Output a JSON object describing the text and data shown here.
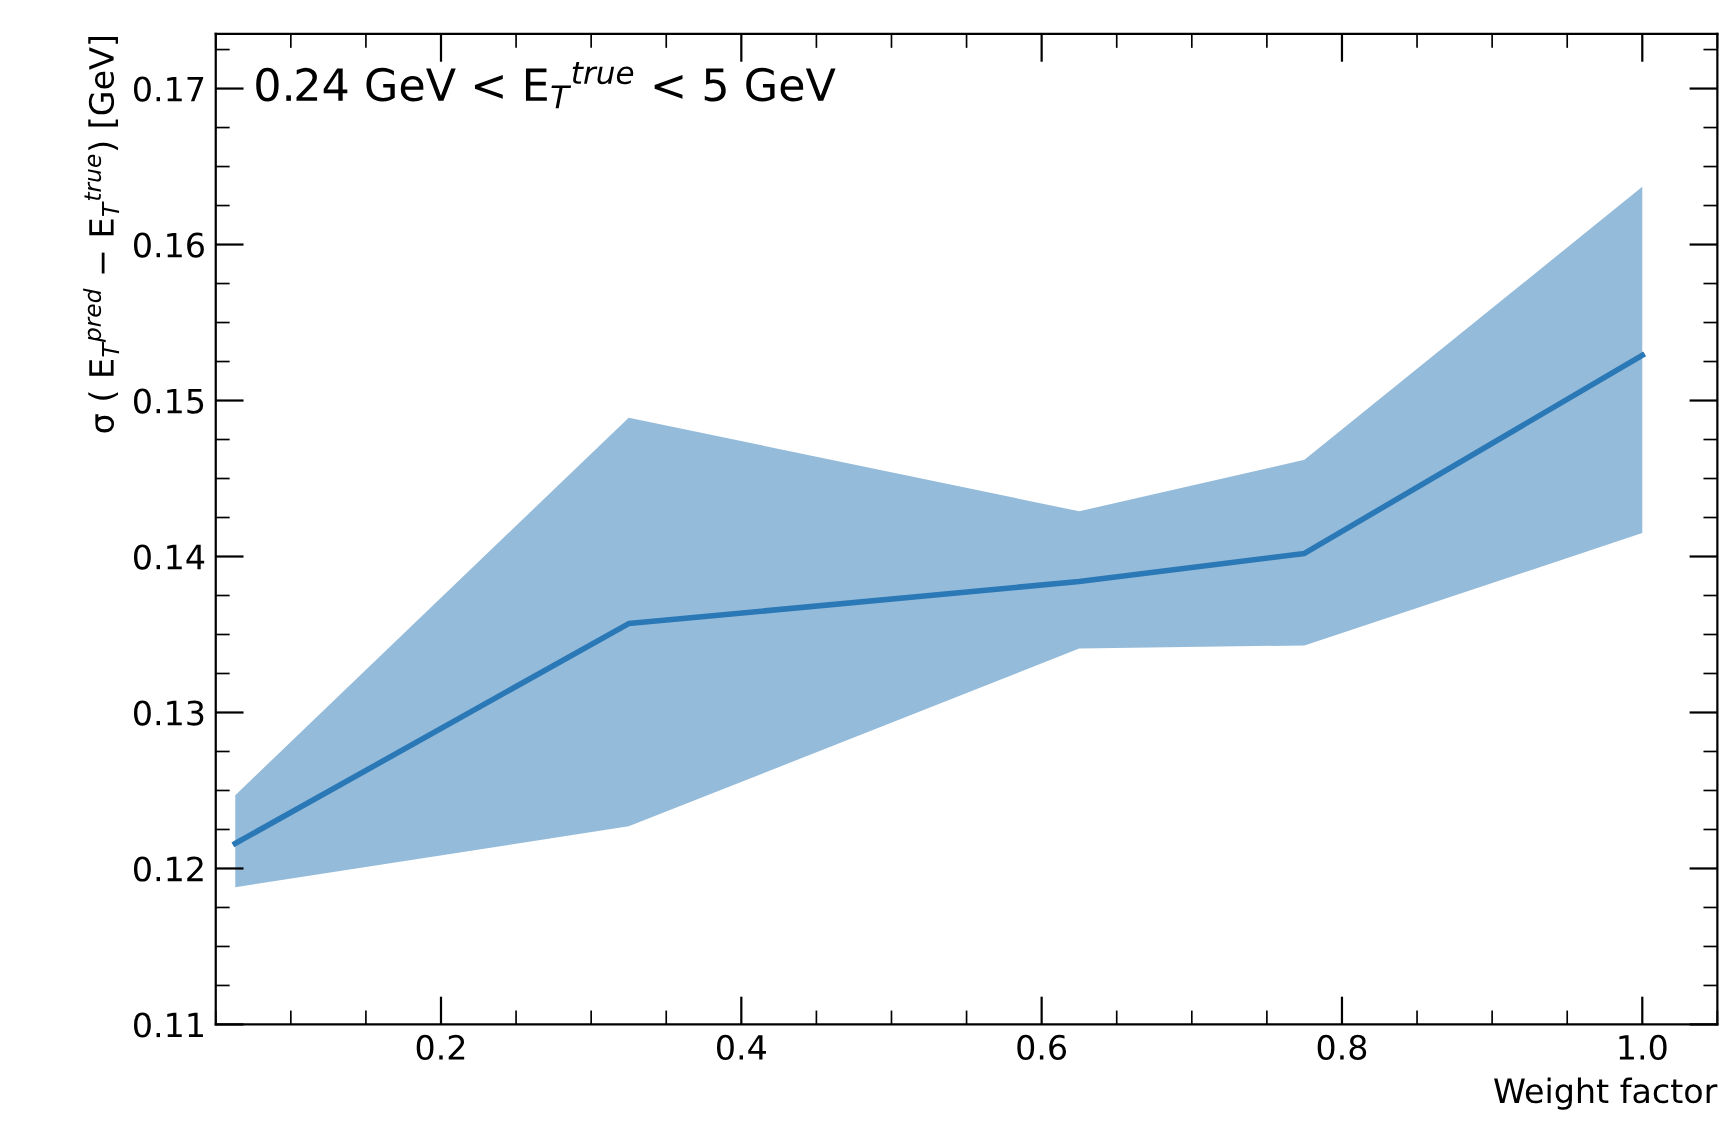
{
  "chart_data": {
    "type": "line",
    "xlabel": "Weight factor",
    "ylabel": "σ ( E$_{T}$$^{pred}$ − E$_{T}$$^{true}$) [GeV]",
    "annotations": [
      "0.24 GeV < E$_{T}$$^{true}$ < 5 GeV"
    ],
    "x": [
      0.063,
      0.325,
      0.625,
      0.775,
      1.0
    ],
    "series": [
      {
        "color": "#2a78b6",
        "values": [
          0.1216,
          0.1357,
          0.1384,
          0.1402,
          0.1529
        ],
        "lower": [
          0.1188,
          0.1227,
          0.1341,
          0.1343,
          0.1415
        ],
        "upper": [
          0.1247,
          0.1489,
          0.1429,
          0.1462,
          0.1637
        ]
      }
    ],
    "xlim": [
      0.05,
      1.05
    ],
    "xticks": [
      0.2,
      0.4,
      0.6,
      0.8,
      {
        "value": 1.0,
        "label": "1.0"
      }
    ],
    "ylim": [
      0.11,
      0.1735
    ],
    "yticks": [
      0.11,
      0.12,
      0.13,
      0.14,
      0.15,
      0.16,
      0.17
    ],
    "grid": false,
    "legend": false,
    "marker": "none",
    "line_style": "solid"
  }
}
